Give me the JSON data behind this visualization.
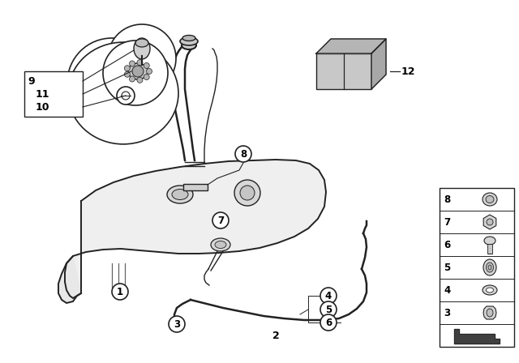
{
  "bg_color": "#ffffff",
  "line_color": "#222222",
  "figsize": [
    6.4,
    4.48
  ],
  "dpi": 100
}
